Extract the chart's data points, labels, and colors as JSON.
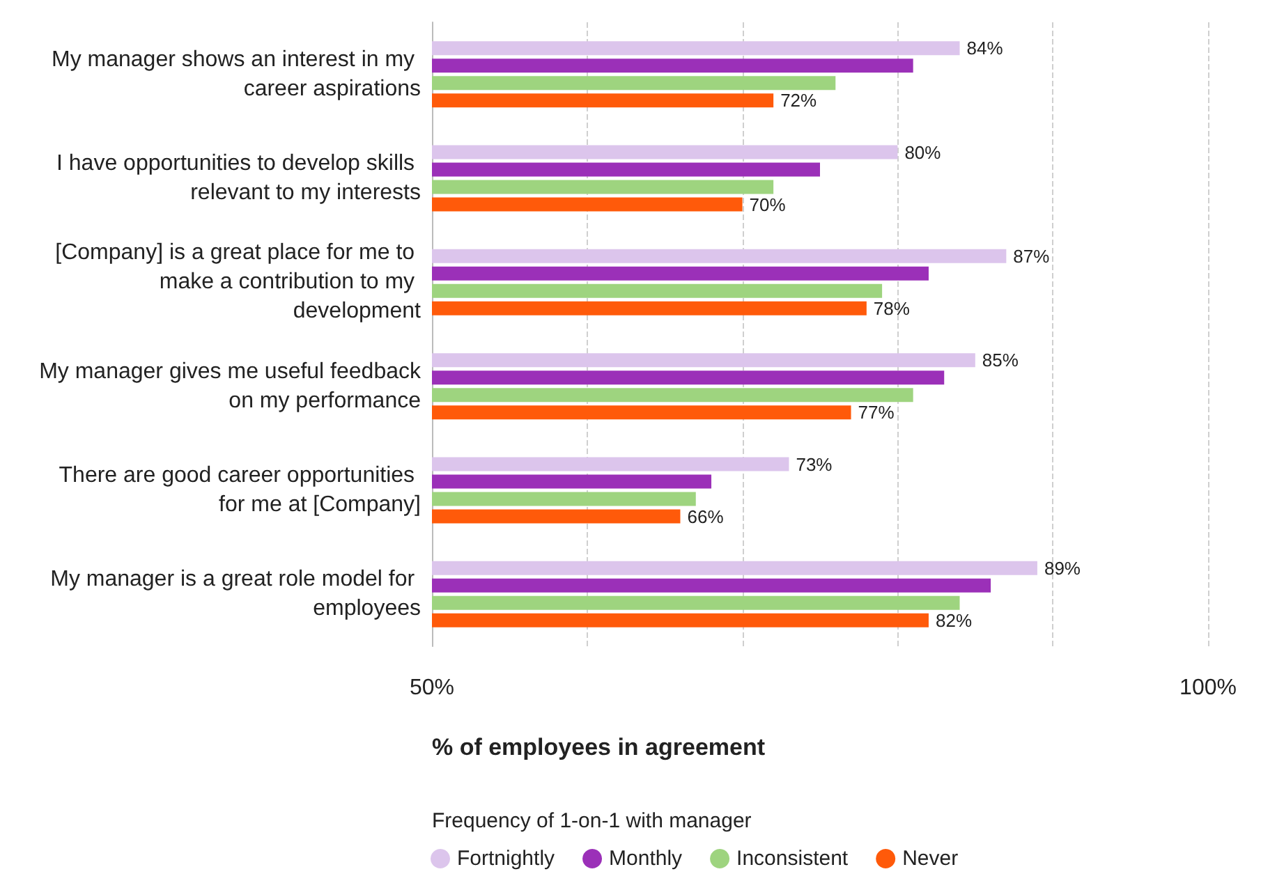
{
  "chart_data": {
    "type": "bar",
    "orientation": "horizontal",
    "xlabel": "% of employees in agreement",
    "legend_title": "Frequency of 1-on-1 with manager",
    "categories": [
      "My manager shows an interest in my career aspirations",
      "I have opportunities to develop skills relevant to my interests",
      "[Company] is a great place for me to make a contribution to my development",
      "My manager gives me useful feedback on my performance",
      "There are good career opportunities for me at [Company]",
      "My manager is a great role model for employees"
    ],
    "series": [
      {
        "name": "Fortnightly",
        "color": "#dcc5ec",
        "values": [
          84,
          80,
          87,
          85,
          73,
          89
        ],
        "value_labels": [
          "84%",
          "80%",
          "87%",
          "85%",
          "73%",
          "89%"
        ]
      },
      {
        "name": "Monthly",
        "color": "#9b30b8",
        "values": [
          81,
          75,
          82,
          83,
          68,
          86
        ]
      },
      {
        "name": "Inconsistent",
        "color": "#9ed47f",
        "values": [
          76,
          72,
          79,
          81,
          67,
          84
        ]
      },
      {
        "name": "Never",
        "color": "#ff5a0a",
        "values": [
          72,
          70,
          78,
          77,
          66,
          82
        ],
        "value_labels": [
          "72%",
          "70%",
          "78%",
          "77%",
          "66%",
          "82%"
        ]
      }
    ],
    "xlim": [
      50,
      100
    ],
    "xticks": [
      {
        "value": 50,
        "label": "50%"
      },
      {
        "value": 60,
        "label": null
      },
      {
        "value": 70,
        "label": null
      },
      {
        "value": 80,
        "label": null
      },
      {
        "value": 90,
        "label": null
      },
      {
        "value": 100,
        "label": "100%"
      }
    ],
    "grid": "x",
    "legend": "bottom",
    "marker": "circle"
  }
}
